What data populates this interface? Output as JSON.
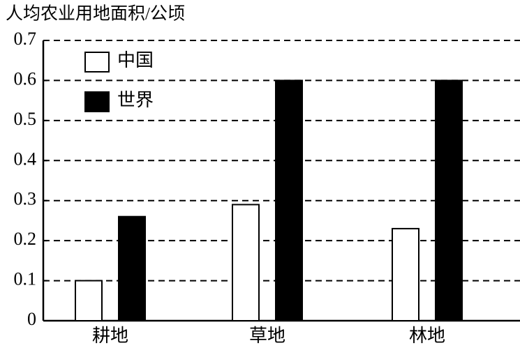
{
  "chart_data": {
    "type": "bar",
    "title": "人均农业用地面积/公顷",
    "categories": [
      "耕地",
      "草地",
      "林地"
    ],
    "series": [
      {
        "name": "中国",
        "color": "#ffffff",
        "values": [
          0.1,
          0.29,
          0.23
        ]
      },
      {
        "name": "世界",
        "color": "#000000",
        "values": [
          0.26,
          0.6,
          0.6
        ]
      }
    ],
    "ylim": [
      0,
      0.7
    ],
    "yticks": [
      0,
      0.1,
      0.2,
      0.3,
      0.4,
      0.5,
      0.6,
      0.7
    ],
    "grid": true,
    "legend": "upper left"
  }
}
